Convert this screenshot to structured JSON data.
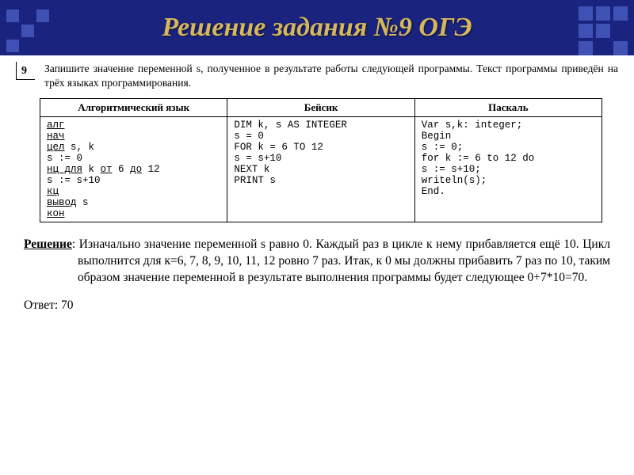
{
  "header": {
    "title": "Решение задания №9 ОГЭ",
    "title_color": "#d6b85a",
    "bg_color": "#1a237e",
    "pattern_color": "#3f51b5"
  },
  "task": {
    "number": "9",
    "text": "Запишите значение переменной s, полученное в результате работы следующей программы. Текст программы приведён на трёх языках программирования."
  },
  "table": {
    "columns": [
      "Алгоритмический язык",
      "Бейсик",
      "Паскаль"
    ],
    "alg": {
      "l1": "алг",
      "l2": "нач",
      "l3_pre": "",
      "l3_kw": "цел",
      "l3_rest": " s, k",
      "l4": "  s := 0",
      "l5_pre": "  ",
      "l5_kw1": "нц для",
      "l5_mid": " k ",
      "l5_kw2": "от",
      "l5_mid2": " 6 ",
      "l5_kw3": "до",
      "l5_rest": " 12",
      "l6": "    s := s+10",
      "l7_pre": "  ",
      "l7_kw": "кц",
      "l8_pre": "  ",
      "l8_kw": "вывод",
      "l8_rest": " s",
      "l9": "кон"
    },
    "basic": {
      "l1": "DIM k, s AS INTEGER",
      "l2": "s = 0",
      "l3": "FOR k = 6 TO 12",
      "l4": "s = s+10",
      "l5": "NEXT k",
      "l6": "PRINT s"
    },
    "pascal": {
      "l1": "Var s,k: integer;",
      "l2": "Begin",
      "l3": "  s := 0;",
      "l4": "  for k := 6 to 12 do",
      "l5": "    s := s+10;",
      "l6": "  writeln(s);",
      "l7": "End."
    }
  },
  "solution": {
    "label": "Решение",
    "text": ": Изначально значение переменной s равно 0. Каждый раз в цикле к нему прибавляется ещё 10. Цикл выполнится для к=6, 7, 8, 9, 10, 11, 12 ровно 7 раз. Итак, к 0 мы должны прибавить 7 раз по 10, таким образом значение переменной в результате выполнения программы будет следующее 0+7*10=70.",
    "answer": "Ответ: 70"
  },
  "fonts": {
    "body": "Times New Roman",
    "code": "Courier New",
    "title_size_pt": 26,
    "task_size_pt": 10,
    "solution_size_pt": 12
  }
}
